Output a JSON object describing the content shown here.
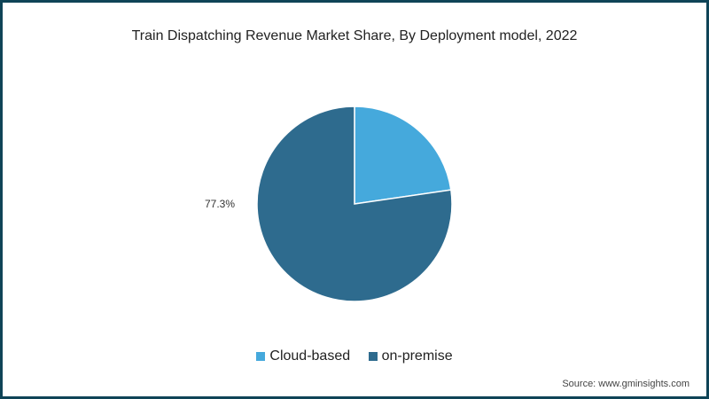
{
  "title": "Train Dispatching Revenue Market Share, By Deployment model, 2022",
  "source": "Source: www.gminsights.com",
  "data_label": "77.3%",
  "legend": [
    {
      "label": "Cloud-based",
      "color": "#45a9dc"
    },
    {
      "label": "on-premise",
      "color": "#2e6b8e"
    }
  ],
  "chart_data": {
    "type": "pie",
    "title": "Train Dispatching Revenue Market Share, By Deployment model, 2022",
    "categories": [
      "Cloud-based",
      "on-premise"
    ],
    "values": [
      22.7,
      77.3
    ],
    "unit": "%",
    "colors": [
      "#45a9dc",
      "#2e6b8e"
    ],
    "data_labels": {
      "on-premise": "77.3%"
    },
    "legend_position": "bottom"
  }
}
